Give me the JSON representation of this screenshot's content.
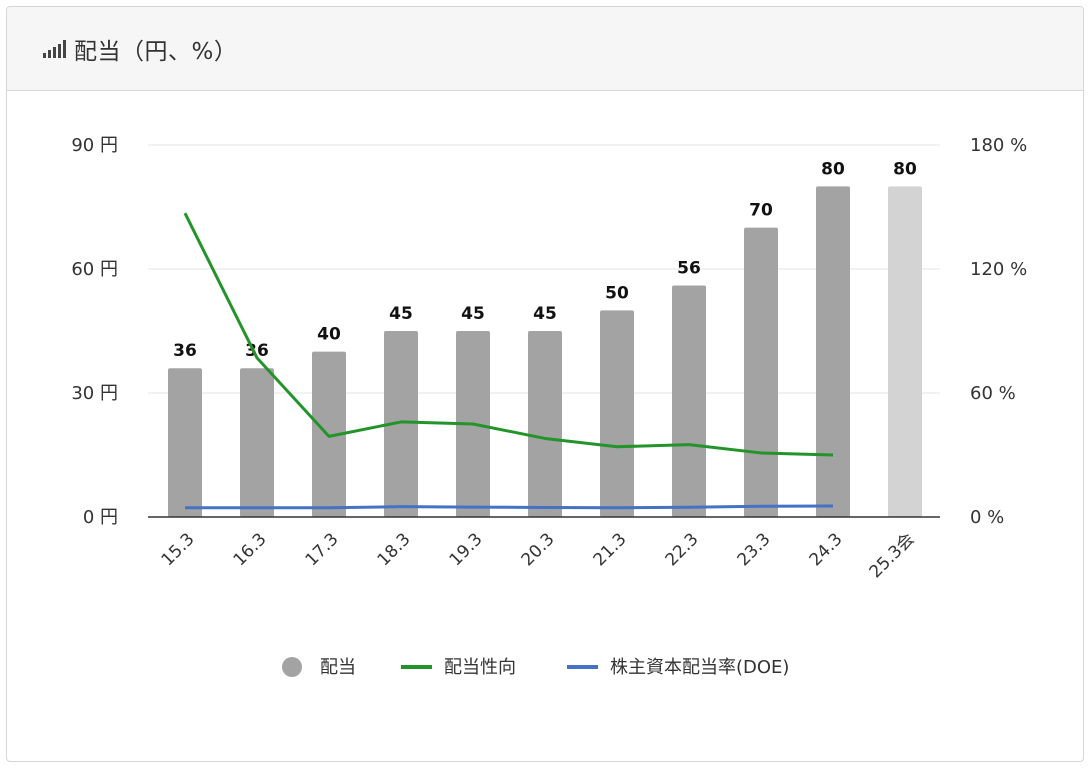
{
  "header": {
    "title": "配当（円、%）",
    "icon": "bar-signal-icon"
  },
  "colors": {
    "dividend": "#a3a3a3",
    "dividend_forecast": "#d3d3d3",
    "payout_ratio": "#22942a",
    "doe": "#4472c4"
  },
  "chart_data": {
    "type": "bar",
    "categories": [
      "15.3",
      "16.3",
      "17.3",
      "18.3",
      "19.3",
      "20.3",
      "21.3",
      "22.3",
      "23.3",
      "24.3",
      "25.3会"
    ],
    "series": [
      {
        "name": "配当",
        "kind": "bar",
        "axis": "left",
        "values": [
          36,
          36,
          40,
          45,
          45,
          45,
          50,
          56,
          70,
          80,
          80
        ],
        "forecast_index": 10
      },
      {
        "name": "配当性向",
        "kind": "line",
        "axis": "right",
        "values": [
          147,
          77,
          39,
          46,
          45,
          38,
          34,
          35,
          31,
          30,
          null
        ]
      },
      {
        "name": "株主資本配当率(DOE)",
        "kind": "line",
        "axis": "right",
        "values": [
          4.5,
          4.5,
          4.5,
          5,
          4.8,
          4.6,
          4.5,
          4.7,
          5.2,
          5.3,
          null
        ]
      }
    ],
    "y_left": {
      "min": 0,
      "max": 90,
      "ticks": [
        0,
        30,
        60,
        90
      ],
      "unit": "円"
    },
    "y_right": {
      "min": 0,
      "max": 180,
      "ticks": [
        0,
        60,
        120,
        180
      ],
      "unit": "%"
    },
    "grid": true,
    "legend_position": "bottom"
  }
}
